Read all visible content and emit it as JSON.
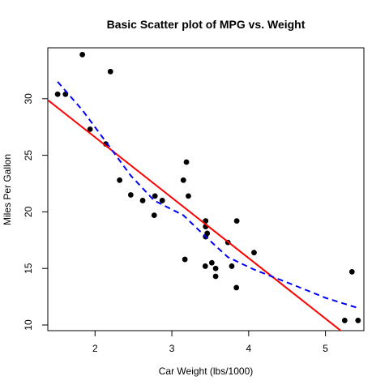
{
  "chart_data": {
    "type": "scatter",
    "title": "Basic Scatter plot of MPG vs. Weight",
    "xlabel": "Car Weight (lbs/1000)",
    "ylabel": "Miles Per Gallon",
    "xlim": [
      1.385,
      5.5
    ],
    "ylim": [
      9.5,
      34.5
    ],
    "xticks": [
      2,
      3,
      4,
      5
    ],
    "yticks": [
      10,
      15,
      20,
      25,
      30
    ],
    "grid": false,
    "legend": "none",
    "points": [
      {
        "x": 2.62,
        "y": 21.0
      },
      {
        "x": 2.875,
        "y": 21.0
      },
      {
        "x": 2.32,
        "y": 22.8
      },
      {
        "x": 3.215,
        "y": 21.4
      },
      {
        "x": 3.44,
        "y": 18.7
      },
      {
        "x": 3.46,
        "y": 18.1
      },
      {
        "x": 3.57,
        "y": 14.3
      },
      {
        "x": 3.19,
        "y": 24.4
      },
      {
        "x": 3.15,
        "y": 22.8
      },
      {
        "x": 3.44,
        "y": 19.2
      },
      {
        "x": 3.44,
        "y": 17.8
      },
      {
        "x": 4.07,
        "y": 16.4
      },
      {
        "x": 3.73,
        "y": 17.3
      },
      {
        "x": 3.78,
        "y": 15.2
      },
      {
        "x": 5.25,
        "y": 10.4
      },
      {
        "x": 5.424,
        "y": 10.4
      },
      {
        "x": 5.345,
        "y": 14.7
      },
      {
        "x": 2.2,
        "y": 32.4
      },
      {
        "x": 1.615,
        "y": 30.4
      },
      {
        "x": 1.835,
        "y": 33.9
      },
      {
        "x": 2.465,
        "y": 21.5
      },
      {
        "x": 3.52,
        "y": 15.5
      },
      {
        "x": 3.435,
        "y": 15.2
      },
      {
        "x": 3.84,
        "y": 13.3
      },
      {
        "x": 3.845,
        "y": 19.2
      },
      {
        "x": 1.935,
        "y": 27.3
      },
      {
        "x": 2.14,
        "y": 26.0
      },
      {
        "x": 1.513,
        "y": 30.4
      },
      {
        "x": 3.17,
        "y": 15.8
      },
      {
        "x": 2.77,
        "y": 19.7
      },
      {
        "x": 3.57,
        "y": 15.0
      },
      {
        "x": 2.78,
        "y": 21.4
      }
    ],
    "regression_line": {
      "color": "#ff0000",
      "style": "solid",
      "intercept": 37.285,
      "slope": -5.344
    },
    "lowess_line": {
      "color": "#0000ff",
      "style": "dashed",
      "points": [
        {
          "x": 1.513,
          "y": 31.5
        },
        {
          "x": 1.835,
          "y": 29.0
        },
        {
          "x": 2.14,
          "y": 26.2
        },
        {
          "x": 2.465,
          "y": 23.2
        },
        {
          "x": 2.77,
          "y": 21.0
        },
        {
          "x": 3.15,
          "y": 19.7
        },
        {
          "x": 3.44,
          "y": 17.8
        },
        {
          "x": 3.73,
          "y": 16.0
        },
        {
          "x": 4.07,
          "y": 14.9
        },
        {
          "x": 4.6,
          "y": 13.5
        },
        {
          "x": 5.0,
          "y": 12.4
        },
        {
          "x": 5.424,
          "y": 11.5
        }
      ]
    },
    "colors": {
      "points": "#000000",
      "regression": "#ff0000",
      "lowess": "#0000ff"
    }
  }
}
